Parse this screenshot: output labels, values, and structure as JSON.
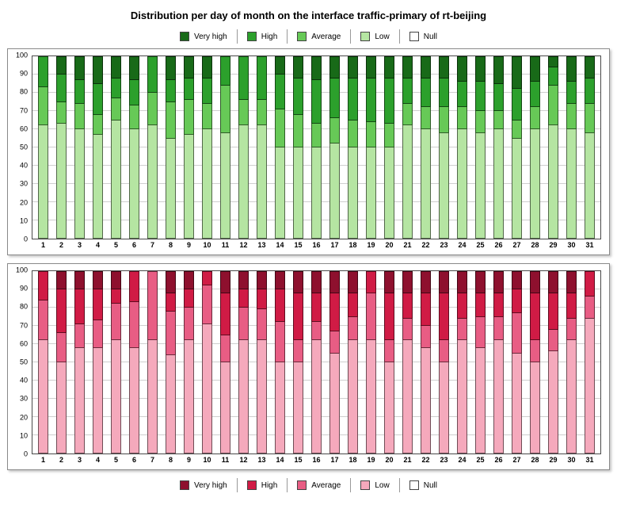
{
  "title": "Distribution per day of month on the interface traffic-primary of rt-beijing",
  "chart_data": [
    {
      "id": "traffic-green",
      "type": "bar",
      "stacked": true,
      "ylim": [
        0,
        100
      ],
      "ytick_step": 10,
      "grid": true,
      "legend_position": "top",
      "legend_order": [
        "Very high",
        "High",
        "Average",
        "Low",
        "Null"
      ],
      "categories": [
        "1",
        "2",
        "3",
        "4",
        "5",
        "6",
        "7",
        "8",
        "9",
        "10",
        "11",
        "12",
        "13",
        "14",
        "15",
        "16",
        "17",
        "18",
        "19",
        "20",
        "21",
        "22",
        "23",
        "24",
        "25",
        "26",
        "27",
        "28",
        "29",
        "30",
        "31"
      ],
      "series": [
        {
          "name": "Low",
          "color": "#b5e5a2",
          "values": [
            62,
            63,
            60,
            57,
            65,
            60,
            62,
            55,
            57,
            60,
            58,
            62,
            62,
            50,
            50,
            50,
            52,
            50,
            50,
            50,
            62,
            60,
            58,
            60,
            58,
            60,
            55,
            60,
            62,
            60,
            58
          ]
        },
        {
          "name": "Average",
          "color": "#67c957",
          "values": [
            21,
            12,
            14,
            11,
            12,
            13,
            18,
            20,
            19,
            14,
            26,
            14,
            14,
            21,
            18,
            13,
            14,
            15,
            14,
            13,
            12,
            12,
            14,
            12,
            12,
            10,
            10,
            12,
            22,
            14,
            16
          ]
        },
        {
          "name": "High",
          "color": "#2ca02c",
          "values": [
            17,
            15,
            13,
            17,
            11,
            14,
            20,
            12,
            12,
            14,
            16,
            24,
            24,
            19,
            20,
            24,
            22,
            23,
            24,
            25,
            14,
            16,
            16,
            14,
            16,
            15,
            17,
            14,
            10,
            12,
            14
          ]
        },
        {
          "name": "Very high",
          "color": "#186a18",
          "values": [
            0,
            10,
            13,
            15,
            12,
            13,
            0,
            13,
            12,
            12,
            0,
            0,
            0,
            10,
            12,
            13,
            12,
            12,
            12,
            12,
            12,
            12,
            12,
            14,
            14,
            15,
            18,
            14,
            6,
            14,
            12
          ]
        },
        {
          "name": "Null",
          "color": "#ffffff",
          "values": [
            0,
            0,
            0,
            0,
            0,
            0,
            0,
            0,
            0,
            0,
            0,
            0,
            0,
            0,
            0,
            0,
            0,
            0,
            0,
            0,
            0,
            0,
            0,
            0,
            0,
            0,
            0,
            0,
            0,
            0,
            0
          ]
        }
      ]
    },
    {
      "id": "traffic-red",
      "type": "bar",
      "stacked": true,
      "ylim": [
        0,
        100
      ],
      "ytick_step": 10,
      "grid": true,
      "legend_position": "bottom",
      "legend_order": [
        "Very high",
        "High",
        "Average",
        "Low",
        "Null"
      ],
      "categories": [
        "1",
        "2",
        "3",
        "4",
        "5",
        "6",
        "7",
        "8",
        "9",
        "10",
        "11",
        "12",
        "13",
        "14",
        "15",
        "16",
        "17",
        "18",
        "19",
        "20",
        "21",
        "22",
        "23",
        "24",
        "25",
        "26",
        "27",
        "28",
        "29",
        "30",
        "31"
      ],
      "series": [
        {
          "name": "Low",
          "color": "#f5a9bc",
          "values": [
            62,
            50,
            58,
            58,
            62,
            58,
            62,
            54,
            62,
            71,
            50,
            62,
            62,
            50,
            50,
            62,
            55,
            62,
            62,
            50,
            62,
            58,
            50,
            62,
            58,
            62,
            55,
            50,
            56,
            62,
            74
          ]
        },
        {
          "name": "Average",
          "color": "#e85d84",
          "values": [
            22,
            16,
            13,
            15,
            20,
            25,
            38,
            24,
            18,
            21,
            15,
            18,
            17,
            22,
            12,
            10,
            12,
            13,
            26,
            12,
            12,
            12,
            12,
            12,
            17,
            13,
            22,
            12,
            12,
            12,
            12
          ]
        },
        {
          "name": "High",
          "color": "#d01b45",
          "values": [
            16,
            24,
            19,
            17,
            8,
            17,
            0,
            10,
            10,
            8,
            23,
            10,
            11,
            18,
            26,
            16,
            21,
            13,
            12,
            26,
            14,
            18,
            26,
            14,
            13,
            13,
            13,
            26,
            20,
            14,
            14
          ]
        },
        {
          "name": "Very high",
          "color": "#8e102e",
          "values": [
            0,
            10,
            10,
            10,
            10,
            0,
            0,
            12,
            10,
            0,
            12,
            10,
            10,
            10,
            12,
            12,
            12,
            12,
            0,
            12,
            12,
            12,
            12,
            12,
            12,
            12,
            10,
            12,
            12,
            12,
            0
          ]
        },
        {
          "name": "Null",
          "color": "#ffffff",
          "values": [
            0,
            0,
            0,
            0,
            0,
            0,
            0,
            0,
            0,
            0,
            0,
            0,
            0,
            0,
            0,
            0,
            0,
            0,
            0,
            0,
            0,
            0,
            0,
            0,
            0,
            0,
            0,
            0,
            0,
            0,
            0
          ]
        }
      ]
    }
  ]
}
